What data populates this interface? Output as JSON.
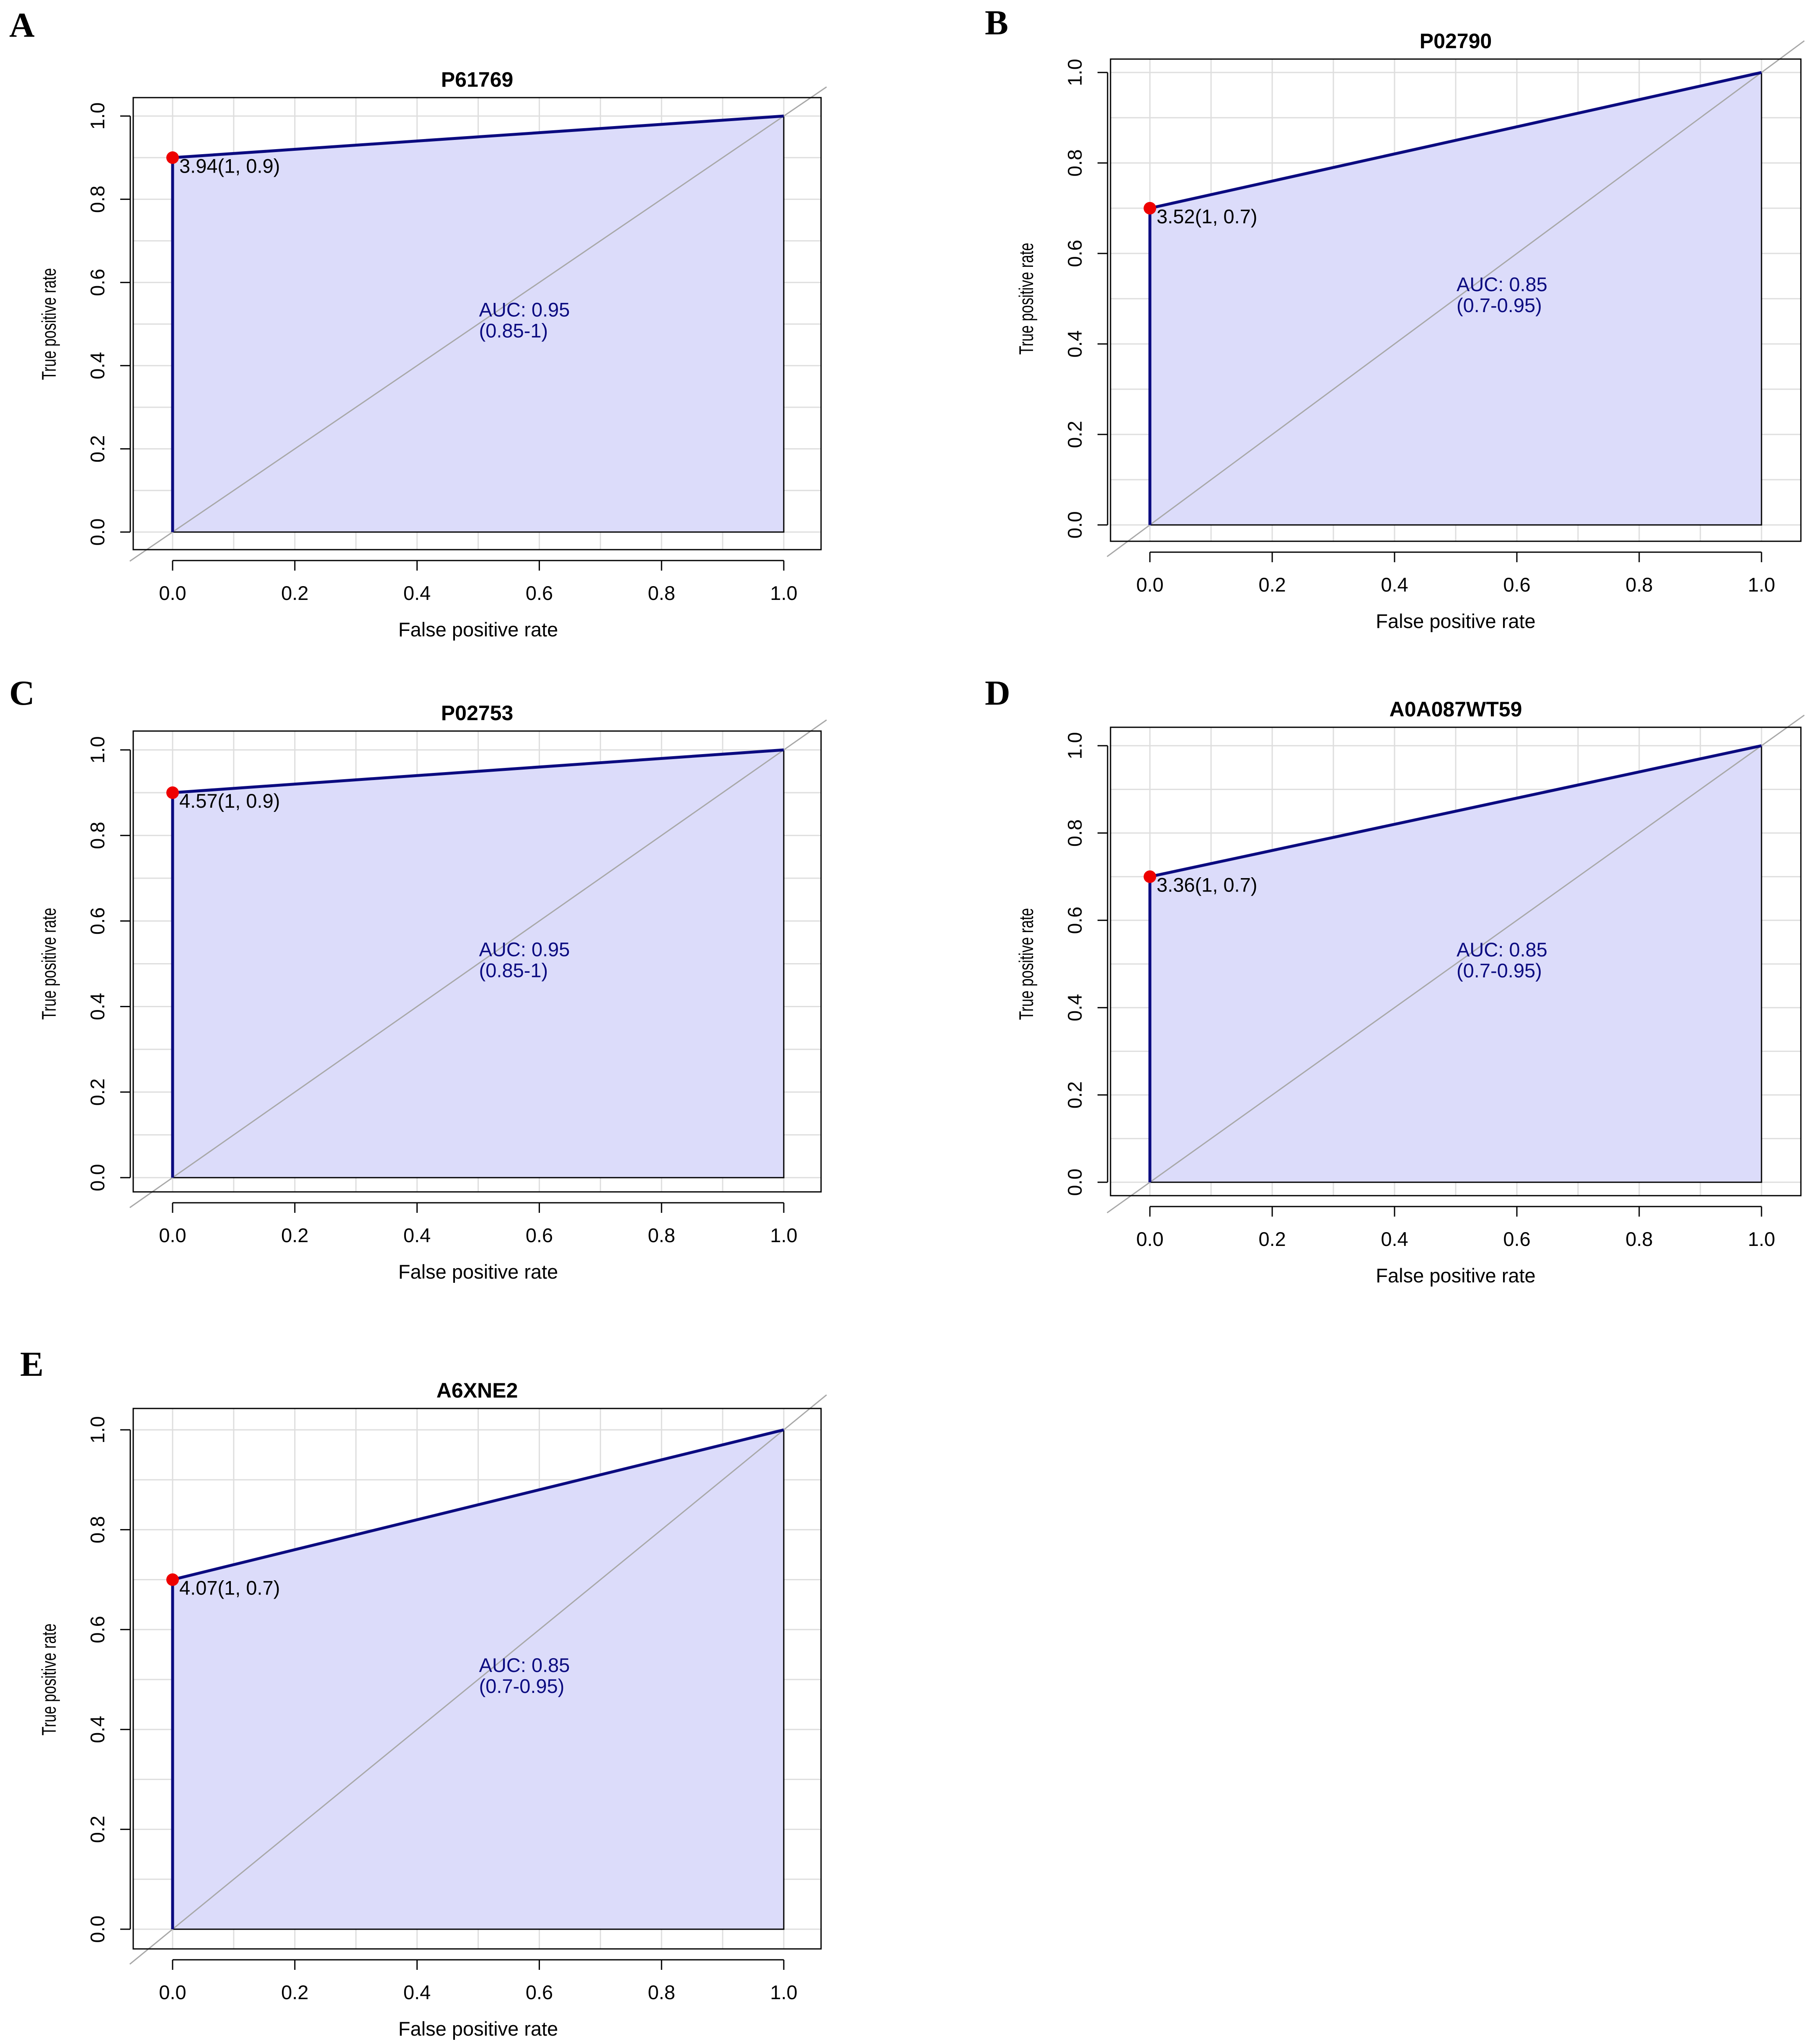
{
  "colors": {
    "roc_line": "#0b0b80",
    "roc_fill": "#dcdcfa",
    "threshold_point": "#ee0000",
    "diagonal": "#a8a8a8",
    "grid": "#dedede",
    "auc_text": "#0b0b80"
  },
  "chart_data": [
    {
      "type": "line",
      "panel": "A",
      "title": "P61769",
      "xlabel": "False positive rate",
      "ylabel": "True positive rate",
      "xlim": [
        0,
        1
      ],
      "ylim": [
        0,
        1
      ],
      "x_ticks": [
        "0.0",
        "0.2",
        "0.4",
        "0.6",
        "0.8",
        "1.0"
      ],
      "y_ticks": [
        "0.0",
        "0.2",
        "0.4",
        "0.6",
        "0.8",
        "1.0"
      ],
      "grid": true,
      "roc_points": [
        [
          0,
          0
        ],
        [
          0,
          0.9
        ],
        [
          1,
          1
        ]
      ],
      "threshold_point": [
        0,
        0.9
      ],
      "threshold_label": "3.94(1, 0.9)",
      "auc_label": "AUC: 0.95",
      "auc_ci_label": "(0.85-1)"
    },
    {
      "type": "line",
      "panel": "B",
      "title": "P02790",
      "xlabel": "False positive rate",
      "ylabel": "True positive rate",
      "xlim": [
        0,
        1
      ],
      "ylim": [
        0,
        1
      ],
      "x_ticks": [
        "0.0",
        "0.2",
        "0.4",
        "0.6",
        "0.8",
        "1.0"
      ],
      "y_ticks": [
        "0.0",
        "0.2",
        "0.4",
        "0.6",
        "0.8",
        "1.0"
      ],
      "grid": true,
      "roc_points": [
        [
          0,
          0
        ],
        [
          0,
          0.7
        ],
        [
          1,
          1
        ]
      ],
      "threshold_point": [
        0,
        0.7
      ],
      "threshold_label": "3.52(1, 0.7)",
      "auc_label": "AUC: 0.85",
      "auc_ci_label": "(0.7-0.95)"
    },
    {
      "type": "line",
      "panel": "C",
      "title": "P02753",
      "xlabel": "False positive rate",
      "ylabel": "True positive rate",
      "xlim": [
        0,
        1
      ],
      "ylim": [
        0,
        1
      ],
      "x_ticks": [
        "0.0",
        "0.2",
        "0.4",
        "0.6",
        "0.8",
        "1.0"
      ],
      "y_ticks": [
        "0.0",
        "0.2",
        "0.4",
        "0.6",
        "0.8",
        "1.0"
      ],
      "grid": true,
      "roc_points": [
        [
          0,
          0
        ],
        [
          0,
          0.9
        ],
        [
          1,
          1
        ]
      ],
      "threshold_point": [
        0,
        0.9
      ],
      "threshold_label": "4.57(1, 0.9)",
      "auc_label": "AUC: 0.95",
      "auc_ci_label": "(0.85-1)"
    },
    {
      "type": "line",
      "panel": "D",
      "title": "A0A087WT59",
      "xlabel": "False positive rate",
      "ylabel": "True positive rate",
      "xlim": [
        0,
        1
      ],
      "ylim": [
        0,
        1
      ],
      "x_ticks": [
        "0.0",
        "0.2",
        "0.4",
        "0.6",
        "0.8",
        "1.0"
      ],
      "y_ticks": [
        "0.0",
        "0.2",
        "0.4",
        "0.6",
        "0.8",
        "1.0"
      ],
      "grid": true,
      "roc_points": [
        [
          0,
          0
        ],
        [
          0,
          0.7
        ],
        [
          1,
          1
        ]
      ],
      "threshold_point": [
        0,
        0.7
      ],
      "threshold_label": "3.36(1, 0.7)",
      "auc_label": "AUC: 0.85",
      "auc_ci_label": "(0.7-0.95)"
    },
    {
      "type": "line",
      "panel": "E",
      "title": "A6XNE2",
      "xlabel": "False positive rate",
      "ylabel": "True positive rate",
      "xlim": [
        0,
        1
      ],
      "ylim": [
        0,
        1
      ],
      "x_ticks": [
        "0.0",
        "0.2",
        "0.4",
        "0.6",
        "0.8",
        "1.0"
      ],
      "y_ticks": [
        "0.0",
        "0.2",
        "0.4",
        "0.6",
        "0.8",
        "1.0"
      ],
      "grid": true,
      "roc_points": [
        [
          0,
          0
        ],
        [
          0,
          0.7
        ],
        [
          1,
          1
        ]
      ],
      "threshold_point": [
        0,
        0.7
      ],
      "threshold_label": "4.07(1, 0.7)",
      "auc_label": "AUC: 0.85",
      "auc_ci_label": "(0.7-0.95)"
    }
  ]
}
